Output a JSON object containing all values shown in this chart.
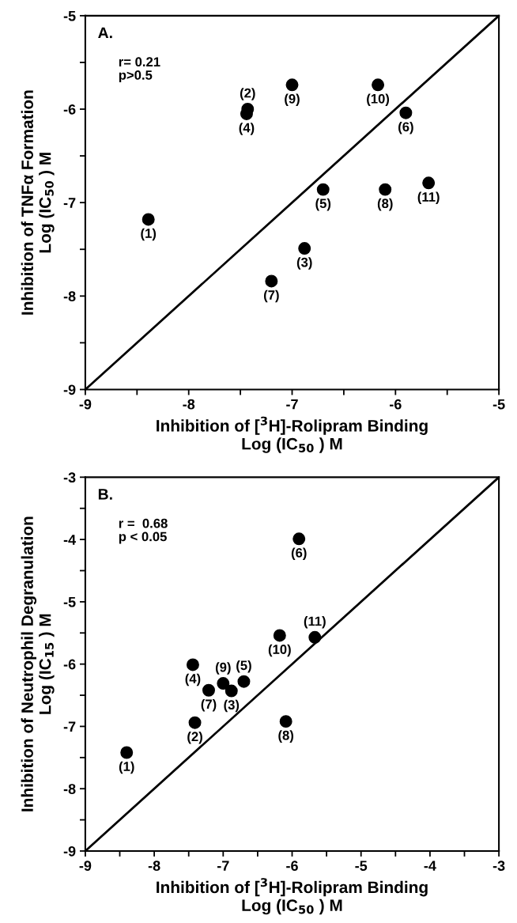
{
  "chart_data": [
    {
      "type": "scatter",
      "title": "A.",
      "xlabel": "Inhibition of [$^{3}$H]-Rolipram Binding\nLog (IC$_{50}$ ) M",
      "ylabel": "Inhibition of TNFα Formation\nLog (IC$_{50}$ ) M",
      "xlim": [
        -9,
        -5
      ],
      "ylim": [
        -9,
        -5
      ],
      "xticks": [
        -9,
        {
          "value": -8.5,
          "label": null
        },
        -8,
        {
          "value": -7.5,
          "label": null
        },
        -7,
        {
          "value": -6.5,
          "label": null
        },
        -6,
        {
          "value": -5.5,
          "label": null
        },
        -5
      ],
      "yticks": [
        -9,
        {
          "value": -8.5,
          "label": null
        },
        -8,
        {
          "value": -7.5,
          "label": null
        },
        -7,
        {
          "value": -6.5,
          "label": null
        },
        -6,
        {
          "value": -5.5,
          "label": null
        },
        -5
      ],
      "grid": false,
      "legend": false,
      "marker": "circle",
      "series": [
        {
          "color": "#000000",
          "x": [
            -8.39,
            -7.43,
            -6.88,
            -7.44,
            -6.7,
            -5.9,
            -7.2,
            -6.1,
            -7.0,
            -6.17,
            -5.68
          ],
          "values": [
            -7.18,
            -6.0,
            -7.49,
            -6.05,
            -6.86,
            -6.04,
            -7.84,
            -6.86,
            -5.74,
            -5.74,
            -6.79
          ]
        },
        {
          "type": "line",
          "color": "#000000",
          "marker": "none",
          "line_style": "solid",
          "x": [
            -9,
            -5
          ],
          "values": [
            -9,
            -5
          ]
        }
      ],
      "annotations": [
        "r= 0.21\np>0.5",
        {
          "text": "(1)",
          "x": -8.39,
          "y": -7.18
        },
        {
          "text": "(2)",
          "x": -7.43,
          "y": -6.0
        },
        {
          "text": "(3)",
          "x": -6.88,
          "y": -7.49
        },
        {
          "text": "(4)",
          "x": -7.44,
          "y": -6.05
        },
        {
          "text": "(5)",
          "x": -6.7,
          "y": -6.86
        },
        {
          "text": "(6)",
          "x": -5.9,
          "y": -6.04
        },
        {
          "text": "(7)",
          "x": -7.2,
          "y": -7.84
        },
        {
          "text": "(8)",
          "x": -6.1,
          "y": -6.86
        },
        {
          "text": "(9)",
          "x": -7.0,
          "y": -5.74
        },
        {
          "text": "(10)",
          "x": -6.17,
          "y": -5.74
        },
        {
          "text": "(11)",
          "x": -5.68,
          "y": -6.79
        }
      ]
    },
    {
      "type": "scatter",
      "title": "B.",
      "xlabel": "Inhibition of [$^{3}$H]-Rolipram Binding\nLog (IC$_{50}$ ) M",
      "ylabel": "Inhibition of Neutrophil Degranulation\nLog (IC$_{15}$ ) M",
      "xlim": [
        -9,
        -3
      ],
      "ylim": [
        -9,
        -3
      ],
      "xticks": [
        -9,
        {
          "value": -8.5,
          "label": null
        },
        -8,
        {
          "value": -7.5,
          "label": null
        },
        -7,
        {
          "value": -6.5,
          "label": null
        },
        -6,
        {
          "value": -5.5,
          "label": null
        },
        -5,
        {
          "value": -4.5,
          "label": null
        },
        -4,
        {
          "value": -3.5,
          "label": null
        },
        -3
      ],
      "yticks": [
        -9,
        {
          "value": -8.5,
          "label": null
        },
        -8,
        {
          "value": -7.5,
          "label": null
        },
        -7,
        {
          "value": -6.5,
          "label": null
        },
        -6,
        {
          "value": -5.5,
          "label": null
        },
        -5,
        {
          "value": -4.5,
          "label": null
        },
        -4,
        {
          "value": -3.5,
          "label": null
        },
        -3
      ],
      "grid": false,
      "legend": false,
      "marker": "circle",
      "series": [
        {
          "color": "#000000",
          "x": [
            -8.4,
            -7.41,
            -6.88,
            -7.44,
            -6.7,
            -5.9,
            -7.21,
            -6.09,
            -7.0,
            -6.18,
            -5.67
          ],
          "values": [
            -7.42,
            -6.94,
            -6.43,
            -6.01,
            -6.28,
            -3.99,
            -6.42,
            -6.92,
            -6.31,
            -5.54,
            -5.57
          ]
        },
        {
          "type": "line",
          "color": "#000000",
          "marker": "none",
          "line_style": "solid",
          "x": [
            -9,
            -3
          ],
          "values": [
            -9,
            -3
          ]
        }
      ],
      "annotations": [
        "r =  0.68\np < 0.05",
        {
          "text": "(1)",
          "x": -8.4,
          "y": -7.42
        },
        {
          "text": "(2)",
          "x": -7.41,
          "y": -6.94
        },
        {
          "text": "(3)",
          "x": -6.88,
          "y": -6.43
        },
        {
          "text": "(4)",
          "x": -7.44,
          "y": -6.01
        },
        {
          "text": "(5)",
          "x": -6.7,
          "y": -6.28
        },
        {
          "text": "(6)",
          "x": -5.9,
          "y": -3.99
        },
        {
          "text": "(7)",
          "x": -7.21,
          "y": -6.42
        },
        {
          "text": "(8)",
          "x": -6.09,
          "y": -6.92
        },
        {
          "text": "(9)",
          "x": -7.0,
          "y": -6.31
        },
        {
          "text": "(10)",
          "x": -6.18,
          "y": -5.54
        },
        {
          "text": "(11)",
          "x": -5.67,
          "y": -5.57
        }
      ]
    }
  ]
}
